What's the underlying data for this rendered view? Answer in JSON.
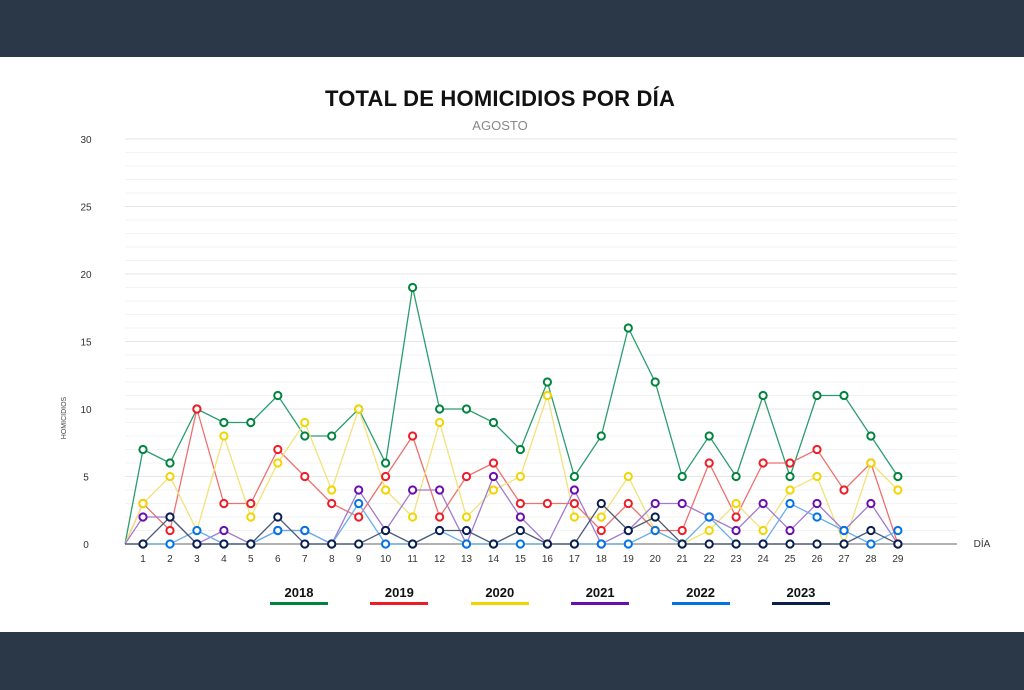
{
  "chart_data": {
    "type": "line",
    "title": "TOTAL DE HOMICIDIOS POR DÍA",
    "subtitle": "AGOSTO",
    "xlabel": "DÍA",
    "ylabel": "HOMICIDIOS",
    "ylim": [
      0,
      30
    ],
    "yticks": [
      0,
      5,
      10,
      15,
      20,
      25,
      30
    ],
    "grid": true,
    "legend_position": "bottom",
    "x": [
      1,
      2,
      3,
      4,
      5,
      6,
      7,
      8,
      9,
      10,
      11,
      12,
      13,
      14,
      15,
      16,
      17,
      18,
      19,
      20,
      21,
      22,
      23,
      24,
      25,
      26,
      27,
      28,
      29
    ],
    "series": [
      {
        "name": "2018",
        "color": "#00843d",
        "line_color": "#2a9d6f",
        "values": [
          7,
          6,
          10,
          9,
          9,
          11,
          8,
          8,
          10,
          6,
          19,
          10,
          10,
          9,
          7,
          12,
          5,
          8,
          16,
          12,
          5,
          8,
          5,
          11,
          5,
          11,
          11,
          8,
          5
        ]
      },
      {
        "name": "2019",
        "color": "#ee1c25",
        "line_color": "#f07070",
        "values": [
          3,
          1,
          10,
          3,
          3,
          7,
          5,
          3,
          2,
          5,
          8,
          2,
          5,
          6,
          3,
          3,
          3,
          1,
          3,
          1,
          1,
          6,
          2,
          6,
          6,
          7,
          4,
          6,
          0
        ]
      },
      {
        "name": "2020",
        "color": "#f2d500",
        "line_color": "#f2e27a",
        "values": [
          3,
          5,
          1,
          8,
          2,
          6,
          9,
          4,
          10,
          4,
          2,
          9,
          2,
          4,
          5,
          11,
          2,
          2,
          5,
          1,
          0,
          1,
          3,
          1,
          4,
          5,
          0,
          6,
          4
        ]
      },
      {
        "name": "2021",
        "color": "#6a0dad",
        "line_color": "#a07ad0",
        "values": [
          2,
          2,
          0,
          1,
          0,
          1,
          1,
          0,
          4,
          1,
          4,
          4,
          0,
          5,
          2,
          0,
          4,
          0,
          1,
          3,
          3,
          2,
          1,
          3,
          1,
          3,
          1,
          3,
          0
        ]
      },
      {
        "name": "2022",
        "color": "#0073e6",
        "line_color": "#6aaee8",
        "values": [
          0,
          0,
          1,
          0,
          0,
          1,
          1,
          0,
          3,
          0,
          0,
          1,
          0,
          0,
          0,
          0,
          0,
          0,
          0,
          1,
          0,
          2,
          0,
          0,
          3,
          2,
          1,
          0,
          1
        ]
      },
      {
        "name": "2023",
        "color": "#0b1f4f",
        "line_color": "#4a5a78",
        "values": [
          0,
          2,
          0,
          0,
          0,
          2,
          0,
          0,
          0,
          1,
          0,
          1,
          1,
          0,
          1,
          0,
          0,
          3,
          1,
          2,
          0,
          0,
          0,
          0,
          0,
          0,
          0,
          1,
          0
        ]
      }
    ]
  }
}
